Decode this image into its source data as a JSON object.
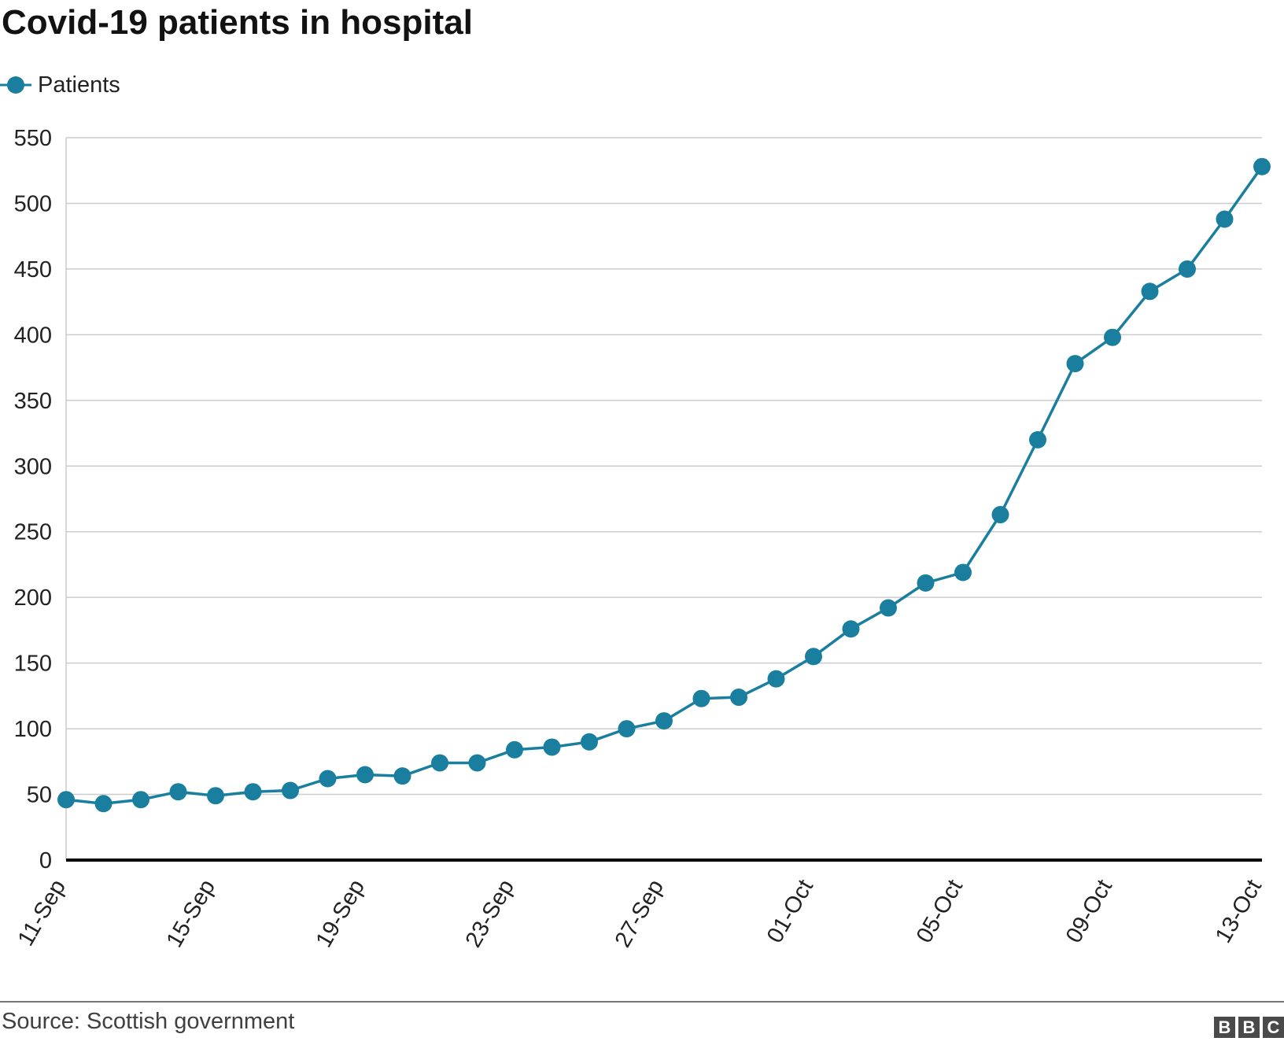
{
  "title": "Covid-19 patients in hospital",
  "legend": {
    "label": "Patients"
  },
  "source": "Source: Scottish government",
  "logo": {
    "letters": [
      "B",
      "B",
      "C"
    ]
  },
  "colors": {
    "series": "#1a7f9e",
    "grid": "#cccccc",
    "axis": "#000000"
  },
  "chart_data": {
    "type": "line",
    "title": "Covid-19 patients in hospital",
    "xlabel": "",
    "ylabel": "",
    "ylim": [
      0,
      550
    ],
    "yticks": [
      0,
      50,
      100,
      150,
      200,
      250,
      300,
      350,
      400,
      450,
      500,
      550
    ],
    "x": [
      "11-Sep",
      "12-Sep",
      "13-Sep",
      "14-Sep",
      "15-Sep",
      "16-Sep",
      "17-Sep",
      "18-Sep",
      "19-Sep",
      "20-Sep",
      "21-Sep",
      "22-Sep",
      "23-Sep",
      "24-Sep",
      "25-Sep",
      "26-Sep",
      "27-Sep",
      "28-Sep",
      "29-Sep",
      "30-Sep",
      "01-Oct",
      "02-Oct",
      "03-Oct",
      "04-Oct",
      "05-Oct",
      "06-Oct",
      "07-Oct",
      "08-Oct",
      "09-Oct",
      "10-Oct",
      "11-Oct",
      "12-Oct",
      "13-Oct"
    ],
    "xtick_labels": [
      "11-Sep",
      "15-Sep",
      "19-Sep",
      "23-Sep",
      "27-Sep",
      "01-Oct",
      "05-Oct",
      "09-Oct",
      "13-Oct"
    ],
    "series": [
      {
        "name": "Patients",
        "values": [
          46,
          43,
          46,
          52,
          49,
          52,
          53,
          62,
          65,
          64,
          74,
          74,
          84,
          86,
          90,
          100,
          106,
          123,
          124,
          138,
          155,
          176,
          192,
          211,
          219,
          263,
          320,
          378,
          398,
          433,
          450,
          488,
          528
        ]
      }
    ],
    "legend": "top-left",
    "grid": true
  }
}
